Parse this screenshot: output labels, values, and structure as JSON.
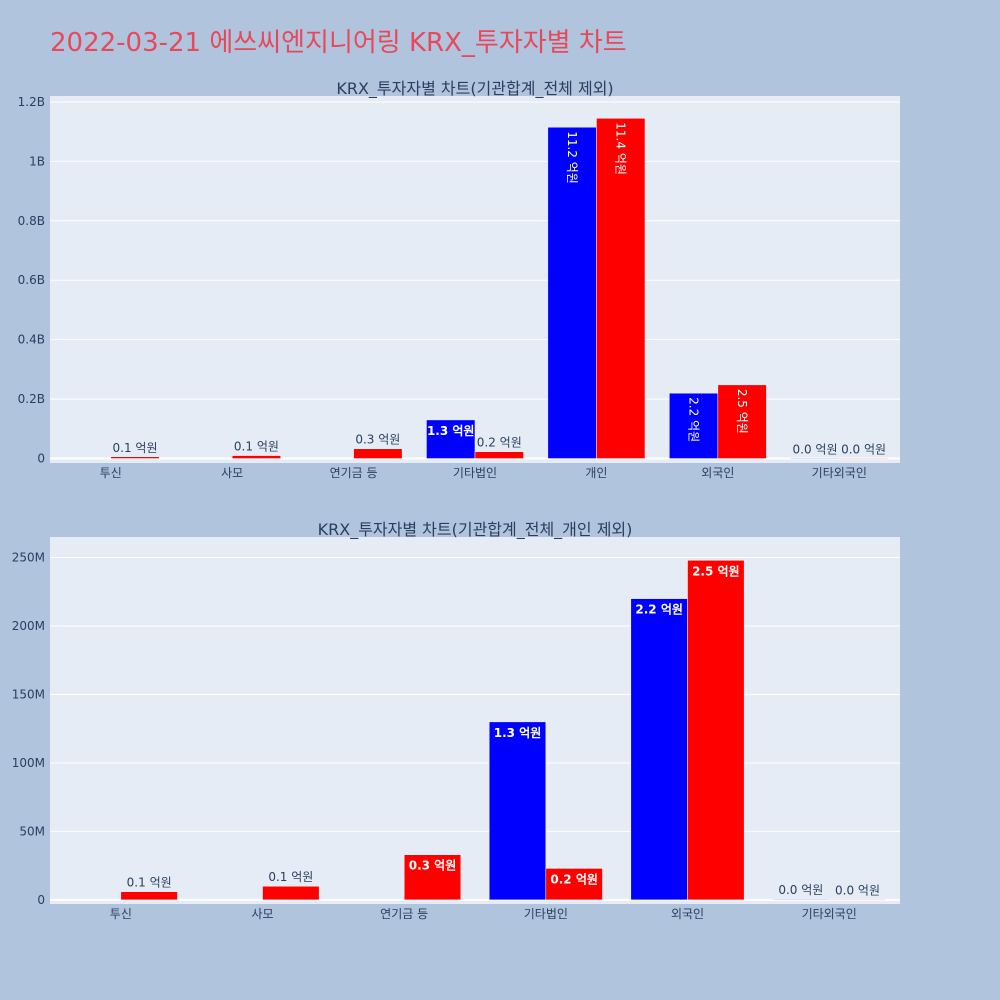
{
  "title": "2022-03-21 에쓰씨엔지니어링 KRX_투자자별 차트",
  "colors": {
    "background": "#b0c4de",
    "plot_bg": "#e5ecf6",
    "series_a": "#0000ff",
    "series_b": "#ff0000",
    "title": "#e8495a"
  },
  "chart_data": [
    {
      "type": "bar",
      "title": "KRX_투자자별 차트(기관합계_전체 제외)",
      "categories": [
        "투신",
        "사모",
        "연기금 등",
        "기타법인",
        "개인",
        "외국인",
        "기타외국인"
      ],
      "series": [
        {
          "color": "#0000ff",
          "values": [
            0,
            0,
            0,
            130000000,
            1115000000,
            220000000,
            500000
          ],
          "labels": [
            "",
            "",
            "",
            "1.3 억원",
            "11.2 억원",
            "2.2 억원",
            "0.0 억원"
          ]
        },
        {
          "color": "#ff0000",
          "values": [
            6000000,
            10000000,
            33000000,
            23000000,
            1145000000,
            248000000,
            300000
          ],
          "labels": [
            "0.1 억원",
            "0.1 억원",
            "0.3 억원",
            "0.2 억원",
            "11.4 억원",
            "2.5 억원",
            "0.0 억원"
          ]
        }
      ],
      "yticks": [
        {
          "value": 0,
          "label": "0"
        },
        {
          "value": 200000000,
          "label": "0.2B"
        },
        {
          "value": 400000000,
          "label": "0.4B"
        },
        {
          "value": 600000000,
          "label": "0.6B"
        },
        {
          "value": 800000000,
          "label": "0.8B"
        },
        {
          "value": 1000000000,
          "label": "1B"
        },
        {
          "value": 1200000000,
          "label": "1.2B"
        }
      ],
      "ylim": [
        -15000000,
        1220000000
      ],
      "grid": true
    },
    {
      "type": "bar",
      "title": "KRX_투자자별 차트(기관합계_전체_개인 제외)",
      "categories": [
        "투신",
        "사모",
        "연기금 등",
        "기타법인",
        "외국인",
        "기타외국인"
      ],
      "series": [
        {
          "color": "#0000ff",
          "values": [
            0,
            0,
            0,
            130000000,
            220000000,
            500000
          ],
          "labels": [
            "",
            "",
            "",
            "1.3 억원",
            "2.2 억원",
            "0.0 억원"
          ]
        },
        {
          "color": "#ff0000",
          "values": [
            6000000,
            10000000,
            33000000,
            23000000,
            248000000,
            300000
          ],
          "labels": [
            "0.1 억원",
            "0.1 억원",
            "0.3 억원",
            "0.2 억원",
            "2.5 억원",
            "0.0 억원"
          ]
        }
      ],
      "yticks": [
        {
          "value": 0,
          "label": "0"
        },
        {
          "value": 50000000,
          "label": "50M"
        },
        {
          "value": 100000000,
          "label": "100M"
        },
        {
          "value": 150000000,
          "label": "150M"
        },
        {
          "value": 200000000,
          "label": "200M"
        },
        {
          "value": 250000000,
          "label": "250M"
        }
      ],
      "ylim": [
        -3000000,
        265000000
      ],
      "grid": true
    }
  ]
}
